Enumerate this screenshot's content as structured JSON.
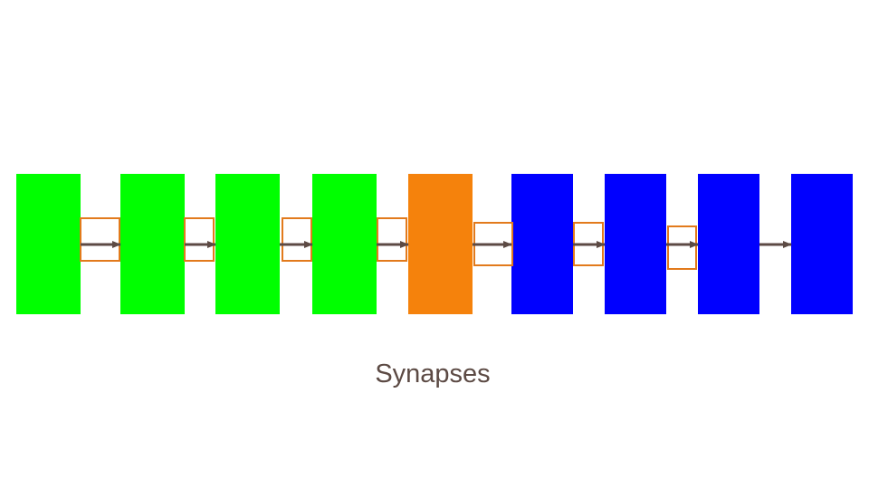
{
  "caption": "Synapses",
  "colors": {
    "background": "#ffffff",
    "neuron_green": "#00ff00",
    "neuron_orange": "#f5820c",
    "neuron_blue": "#0000ff",
    "synapse_box_border": "#e27a1c",
    "arrow": "#5c4a44",
    "caption_text": "#5c4a44"
  },
  "neurons": [
    {
      "color": "green"
    },
    {
      "color": "green"
    },
    {
      "color": "green"
    },
    {
      "color": "green"
    },
    {
      "color": "orange"
    },
    {
      "color": "blue"
    },
    {
      "color": "blue"
    },
    {
      "color": "blue"
    },
    {
      "color": "blue"
    }
  ],
  "connections": [
    {
      "from": 1,
      "to": 2,
      "synapse_box": true
    },
    {
      "from": 2,
      "to": 3,
      "synapse_box": true
    },
    {
      "from": 3,
      "to": 4,
      "synapse_box": true
    },
    {
      "from": 4,
      "to": 5,
      "synapse_box": true
    },
    {
      "from": 5,
      "to": 6,
      "synapse_box": true
    },
    {
      "from": 6,
      "to": 7,
      "synapse_box": true
    },
    {
      "from": 7,
      "to": 8,
      "synapse_box": true
    },
    {
      "from": 8,
      "to": 9,
      "synapse_box": false
    }
  ]
}
